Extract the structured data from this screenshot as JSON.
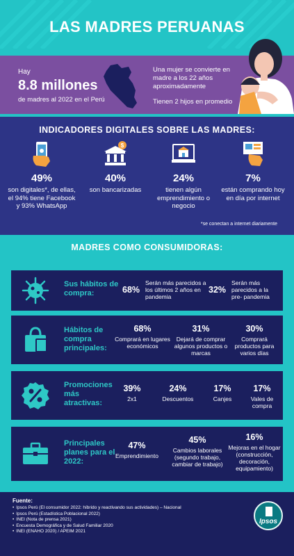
{
  "header": {
    "title": "LAS MADRES PERUANAS",
    "hay": "Hay",
    "count": "8.8 millones",
    "count_sub": "de madres al 2022 en el Perú",
    "age_text": "Una mujer se convierte en madre a los 22 años aproximadamente",
    "kids_text": "Tienen 2 hijos en promedio"
  },
  "digital": {
    "title": "INDICADORES DIGITALES SOBRE LAS MADRES:",
    "items": [
      {
        "icon": "smartphone-hand-icon",
        "pct": "49%",
        "desc": "son digitales*, de ellas, el 94% tiene Facebook y 93% WhatsApp"
      },
      {
        "icon": "bank-icon",
        "pct": "40%",
        "desc": "son bancarizadas"
      },
      {
        "icon": "online-store-icon",
        "pct": "24%",
        "desc": "tienen algún emprendimiento o negocio"
      },
      {
        "icon": "online-shopping-icon",
        "pct": "7%",
        "desc": "están comprando hoy en día por internet"
      }
    ],
    "footnote": "*se conectan a internet diariamente"
  },
  "consumer": {
    "title": "MADRES COMO CONSUMIDORAS:",
    "habits": {
      "label": "Sus hábitos de compra:",
      "icon": "virus-icon",
      "stats": [
        {
          "pct": "68%",
          "desc": "Serán más parecidos a los últimos 2 años en pandemia"
        },
        {
          "pct": "32%",
          "desc": "Serán más parecidos a la pre- pandemia"
        }
      ]
    },
    "main_habits": {
      "label": "Hábitos de compra principales:",
      "icon": "shopping-bag-icon",
      "stats": [
        {
          "pct": "68%",
          "desc": "Comprará en lugares económicos"
        },
        {
          "pct": "31%",
          "desc": "Dejará de comprar algunos productos o marcas"
        },
        {
          "pct": "30%",
          "desc": "Comprará productos para varios días"
        }
      ]
    },
    "promos": {
      "label": "Promociones más atractivas:",
      "icon": "percent-badge-icon",
      "stats": [
        {
          "pct": "39%",
          "desc": "2x1"
        },
        {
          "pct": "24%",
          "desc": "Descuentos"
        },
        {
          "pct": "17%",
          "desc": "Canjes"
        },
        {
          "pct": "17%",
          "desc": "Vales de compra"
        }
      ]
    },
    "plans": {
      "label": "Principales planes para el 2022:",
      "icon": "briefcase-icon",
      "stats": [
        {
          "pct": "47%",
          "desc": "Emprendimiento"
        },
        {
          "pct": "45%",
          "desc": "Cambios laborales (segundo trabajo, cambiar de trabajo)"
        },
        {
          "pct": "16%",
          "desc": "Mejoras en el hogar (construcción, decoración, equipamiento)"
        }
      ]
    }
  },
  "sources": {
    "title": "Fuente:",
    "items": [
      "Ipsos Perú (El consumidor 2022: híbrido y reactivando sus actividades) – Nacional",
      "Ipsos Perú (Estadística Poblacional 2022)",
      "INEI (Nota de prensa 2021)",
      "Encuesta Demográfica y de Salud Familiar 2020",
      "INEI (ENAHO 2020) / APEIM 2021"
    ],
    "logo": "Ipsos"
  },
  "colors": {
    "teal": "#23c4c6",
    "purple": "#7b4fa0",
    "navy": "#2d3486",
    "dark_navy": "#1b1f5e",
    "label_teal": "#2ec8c6",
    "accent_orange": "#f4a340"
  }
}
